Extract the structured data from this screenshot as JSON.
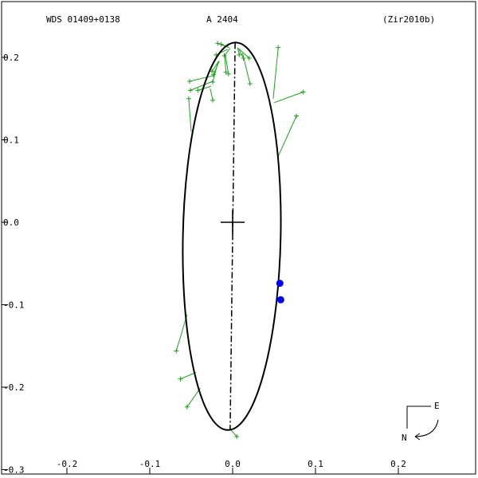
{
  "header": {
    "wds_id": "WDS 01409+0138",
    "discoverer": "A  2404",
    "reference": "(Zir2010b)"
  },
  "orientation": {
    "east_label": "E",
    "north_label": "N"
  },
  "colors": {
    "frame": "#000000",
    "orbit": "#000000",
    "observations": "#1fa01f",
    "predicted_points": "#0000ff",
    "background": "#ffffff"
  },
  "chart_data": {
    "type": "scatter",
    "title": "",
    "xlabel": "",
    "ylabel": "",
    "xlim": [
      -0.28,
      0.29
    ],
    "ylim": [
      -0.3,
      0.235
    ],
    "x_ticks": [
      -0.2,
      -0.1,
      0.0,
      0.1,
      0.2
    ],
    "x_tick_labels": [
      "-0.2",
      "-0.1",
      "0.0",
      "0.1",
      "0.2"
    ],
    "y_ticks": [
      0.2,
      0.1,
      0.0,
      -0.1,
      -0.2,
      -0.3
    ],
    "y_tick_labels": [
      "0.2",
      "0.1",
      "0.0",
      "-0.1",
      "-0.2",
      "-0.3"
    ],
    "grid": false,
    "primary_star": [
      0.0,
      0.0
    ],
    "orbit_ellipse": {
      "center": [
        -0.001,
        -0.017
      ],
      "semi_axis_horizontal": 0.059,
      "semi_axis_vertical": 0.235,
      "tilt_deg": 1.2
    },
    "line_of_nodes": [
      [
        0.003,
        0.218
      ],
      [
        -0.003,
        -0.252
      ]
    ],
    "observations": [
      {
        "obs": [
          -0.018,
          0.217
        ],
        "fit": [
          -0.005,
          0.212
        ]
      },
      {
        "obs": [
          -0.014,
          0.216
        ],
        "fit": [
          -0.004,
          0.212
        ]
      },
      {
        "obs": [
          0.055,
          0.212
        ],
        "fit": [
          0.049,
          0.15
        ]
      },
      {
        "obs": [
          -0.02,
          0.203
        ],
        "fit": [
          -0.006,
          0.21
        ]
      },
      {
        "obs": [
          -0.01,
          0.202
        ],
        "fit": [
          -0.003,
          0.211
        ]
      },
      {
        "obs": [
          0.008,
          0.203
        ],
        "fit": [
          0.006,
          0.212
        ]
      },
      {
        "obs": [
          0.013,
          0.199
        ],
        "fit": [
          0.007,
          0.211
        ]
      },
      {
        "obs": [
          0.02,
          0.199
        ],
        "fit": [
          0.008,
          0.21
        ]
      },
      {
        "obs": [
          -0.008,
          0.182
        ],
        "fit": [
          -0.01,
          0.205
        ]
      },
      {
        "obs": [
          -0.005,
          0.18
        ],
        "fit": [
          -0.009,
          0.204
        ]
      },
      {
        "obs": [
          -0.025,
          0.183
        ],
        "fit": [
          -0.017,
          0.195
        ]
      },
      {
        "obs": [
          -0.023,
          0.179
        ],
        "fit": [
          -0.016,
          0.196
        ]
      },
      {
        "obs": [
          0.021,
          0.168
        ],
        "fit": [
          0.012,
          0.205
        ]
      },
      {
        "obs": [
          -0.024,
          0.17
        ],
        "fit": [
          -0.018,
          0.193
        ]
      },
      {
        "obs": [
          -0.052,
          0.171
        ],
        "fit": [
          -0.022,
          0.178
        ]
      },
      {
        "obs": [
          -0.051,
          0.16
        ],
        "fit": [
          -0.024,
          0.171
        ]
      },
      {
        "obs": [
          -0.042,
          0.16
        ],
        "fit": [
          -0.026,
          0.165
        ]
      },
      {
        "obs": [
          -0.024,
          0.148
        ],
        "fit": [
          -0.027,
          0.162
        ]
      },
      {
        "obs": [
          0.085,
          0.158
        ],
        "fit": [
          0.05,
          0.145
        ]
      },
      {
        "obs": [
          -0.053,
          0.15
        ],
        "fit": [
          -0.05,
          0.11
        ]
      },
      {
        "obs": [
          0.077,
          0.129
        ],
        "fit": [
          0.055,
          0.08
        ]
      },
      {
        "obs": [
          -0.068,
          -0.156
        ],
        "fit": [
          -0.055,
          -0.112
        ]
      },
      {
        "obs": [
          -0.063,
          -0.19
        ],
        "fit": [
          -0.044,
          -0.182
        ]
      },
      {
        "obs": [
          -0.055,
          -0.224
        ],
        "fit": [
          -0.039,
          -0.201
        ]
      },
      {
        "obs": [
          0.005,
          -0.26
        ],
        "fit": [
          -0.002,
          -0.252
        ]
      }
    ],
    "predicted_points": [
      [
        0.057,
        -0.074
      ],
      [
        0.058,
        -0.094
      ]
    ]
  }
}
